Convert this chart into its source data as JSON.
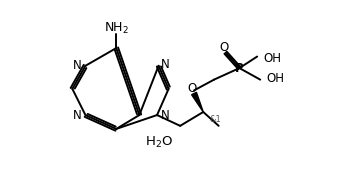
{
  "bg_color": "#ffffff",
  "line_color": "#000000",
  "line_width": 1.4,
  "font_size": 8.5,
  "figsize": [
    3.38,
    1.76
  ],
  "dpi": 100,
  "xlim": [
    0,
    338
  ],
  "ylim": [
    0,
    176
  ]
}
